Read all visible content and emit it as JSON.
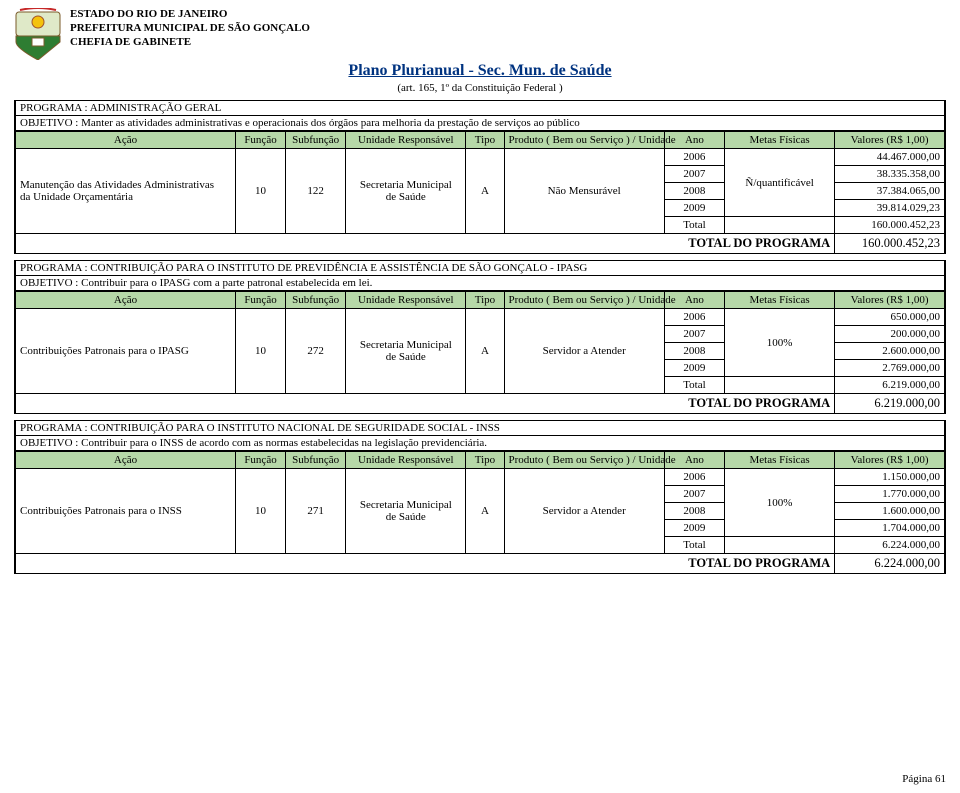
{
  "header": {
    "org1": "ESTADO DO RIO DE JANEIRO",
    "org2": "PREFEITURA MUNICIPAL DE SÃO GONÇALO",
    "org3": "CHEFIA DE GABINETE",
    "title": "Plano Plurianual - Sec. Mun. de Saúde",
    "subtitle": "(art. 165, 1º da Constituição Federal )",
    "page_label": "Página 61"
  },
  "columns": {
    "acao": "Ação",
    "funcao": "Função",
    "subfuncao": "Subfunção",
    "unidade": "Unidade Responsável",
    "tipo": "Tipo",
    "produto": "Produto ( Bem ou Serviço ) / Unidade",
    "ano": "Ano",
    "metas": "Metas Físicas",
    "valores": "Valores (R$ 1,00)"
  },
  "colors": {
    "header_bg": "#b6d8a8",
    "title_color": "#003380",
    "border": "#000000",
    "bg": "#ffffff"
  },
  "labels": {
    "total": "Total",
    "total_programa": "TOTAL DO PROGRAMA"
  },
  "programs": [
    {
      "programa": "PROGRAMA  :  ADMINISTRAÇÃO GERAL",
      "objetivo": "OBJETIVO : Manter as atividades administrativas e operacionais dos órgãos para melhoria da  prestação de serviços ao público",
      "acao_lines": [
        "Manutenção das Atividades Administrativas",
        "da Unidade Orçamentária"
      ],
      "funcao": "10",
      "subfuncao": "122",
      "unidade_lines": [
        "Secretaria Municipal",
        "de Saúde"
      ],
      "tipo": "A",
      "produto": "Não Mensurável",
      "meta": "Ñ/quantificável",
      "rows": [
        {
          "ano": "2006",
          "valor": "44.467.000,00"
        },
        {
          "ano": "2007",
          "valor": "38.335.358,00"
        },
        {
          "ano": "2008",
          "valor": "37.384.065,00"
        },
        {
          "ano": "2009",
          "valor": "39.814.029,23"
        }
      ],
      "total_valor": "160.000.452,23",
      "total_programa": "160.000.452,23"
    },
    {
      "programa": "PROGRAMA  :  CONTRIBUIÇÃO PARA O INSTITUTO DE PREVIDÊNCIA E ASSISTÊNCIA DE SÃO GONÇALO  - IPASG",
      "objetivo": "OBJETIVO : Contribuir para o IPASG com a parte patronal estabelecida em lei.",
      "acao_lines": [
        "Contribuições Patronais para o IPASG"
      ],
      "funcao": "10",
      "subfuncao": "272",
      "unidade_lines": [
        "Secretaria Municipal",
        "de Saúde"
      ],
      "tipo": "A",
      "produto": "Servidor a Atender",
      "meta": "100%",
      "rows": [
        {
          "ano": "2006",
          "valor": "650.000,00"
        },
        {
          "ano": "2007",
          "valor": "200.000,00"
        },
        {
          "ano": "2008",
          "valor": "2.600.000,00"
        },
        {
          "ano": "2009",
          "valor": "2.769.000,00"
        }
      ],
      "total_valor": "6.219.000,00",
      "total_programa": "6.219.000,00"
    },
    {
      "programa": "PROGRAMA  :  CONTRIBUIÇÃO PARA O INSTITUTO NACIONAL DE SEGURIDADE SOCIAL - INSS",
      "objetivo": "OBJETIVO : Contribuir para o INSS  de acordo com as normas  estabelecidas na legislação previdenciária.",
      "acao_lines": [
        "Contribuições Patronais para o INSS"
      ],
      "funcao": "10",
      "subfuncao": "271",
      "unidade_lines": [
        "Secretaria Municipal",
        "de Saúde"
      ],
      "tipo": "A",
      "produto": "Servidor a Atender",
      "meta": "100%",
      "rows": [
        {
          "ano": "2006",
          "valor": "1.150.000,00"
        },
        {
          "ano": "2007",
          "valor": "1.770.000,00"
        },
        {
          "ano": "2008",
          "valor": "1.600.000,00"
        },
        {
          "ano": "2009",
          "valor": "1.704.000,00"
        }
      ],
      "total_valor": "6.224.000,00",
      "total_programa": "6.224.000,00"
    }
  ]
}
